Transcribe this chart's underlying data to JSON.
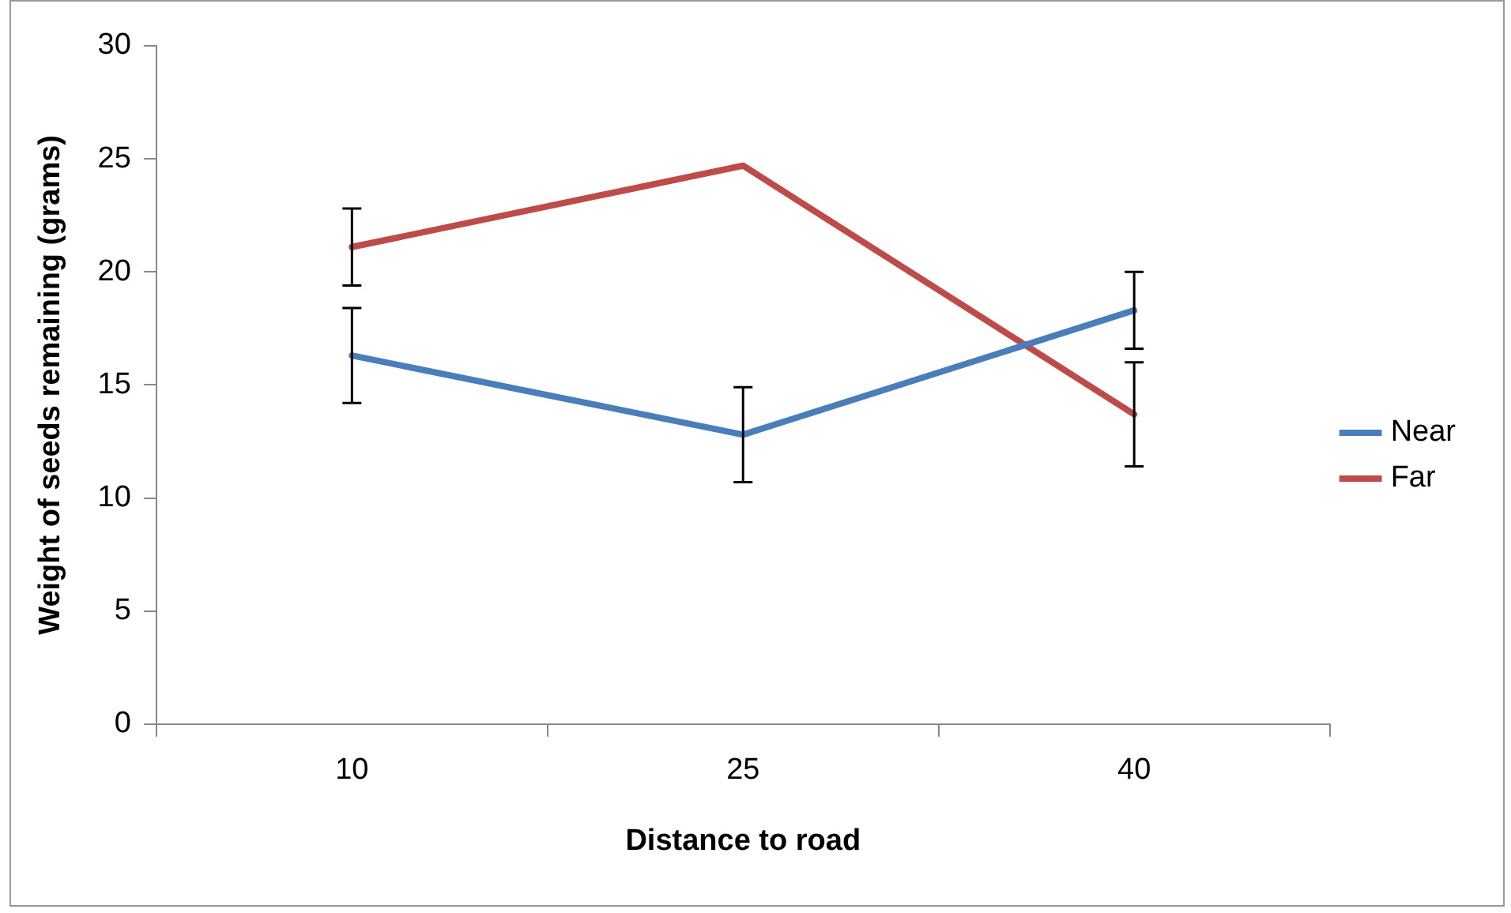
{
  "chart_data": {
    "type": "line",
    "xlabel": "Distance to road",
    "ylabel": "Weight of seeds remaining (grams)",
    "categories": [
      "10",
      "25",
      "40"
    ],
    "series": [
      {
        "name": "Near",
        "color": "#4a7ebb",
        "values": [
          16.3,
          12.8,
          18.3
        ],
        "errors": [
          2.1,
          2.1,
          1.7
        ]
      },
      {
        "name": "Far",
        "color": "#be4b48",
        "values": [
          21.1,
          24.7,
          13.7
        ],
        "errors": [
          1.7,
          null,
          2.3
        ]
      }
    ],
    "ylim": [
      0,
      30
    ],
    "yticks": [
      0,
      5,
      10,
      15,
      20,
      25,
      30
    ],
    "grid": false,
    "legend": "right",
    "marker": "none",
    "line_style": "solid"
  }
}
